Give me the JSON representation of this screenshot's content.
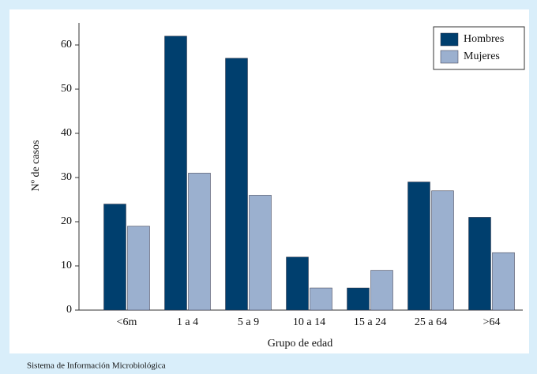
{
  "chart_data": {
    "type": "bar",
    "x_label": "Grupo de edad",
    "y_label": "Nº de casos",
    "source": "Sistema de Información Microbiológica",
    "categories": [
      "<6m",
      "1 a 4",
      "5 a 9",
      "10 a 14",
      "15 a 24",
      "25 a 64",
      ">64"
    ],
    "series": [
      {
        "name": "Hombres",
        "color": "#003f6e",
        "values": [
          24,
          62,
          57,
          12,
          5,
          29,
          21
        ]
      },
      {
        "name": "Mujeres",
        "color": "#9bb0cf",
        "values": [
          19,
          31,
          26,
          5,
          9,
          27,
          13
        ]
      }
    ],
    "ylim": [
      0,
      65
    ],
    "yticks": [
      0,
      10,
      20,
      30,
      40,
      50,
      60
    ],
    "legend": "upper-right"
  }
}
